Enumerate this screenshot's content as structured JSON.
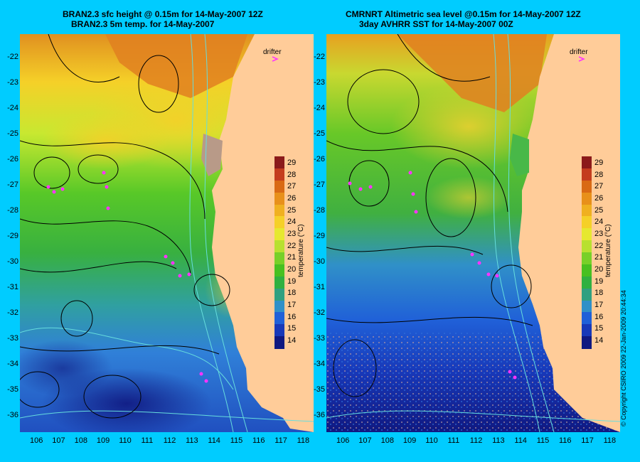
{
  "panels": [
    {
      "title_line1": "BRAN2.3 sfc height @ 0.15m for 14-May-2007 12Z",
      "title_line2": "BRAN2.3 5m temp. for 14-May-2007",
      "drifter_label": "drifter"
    },
    {
      "title_line1": "CMRNRT Altimetric sea level  @0.15m  for 14-May-2007 12Z",
      "title_line2": "3day AVHRR SST for 14-May-2007 00Z",
      "drifter_label": "drifter"
    }
  ],
  "axes": {
    "lat_ticks": [
      "-22",
      "-23",
      "-24",
      "-25",
      "-26",
      "-27",
      "-28",
      "-29",
      "-30",
      "-31",
      "-32",
      "-33",
      "-34",
      "-35",
      "-36"
    ],
    "lon_ticks": [
      "106",
      "107",
      "108",
      "109",
      "110",
      "111",
      "112",
      "113",
      "114",
      "115",
      "116",
      "117",
      "118"
    ]
  },
  "colorbar": {
    "title": "temperature (°C)",
    "labels": [
      "29",
      "28",
      "27",
      "26",
      "25",
      "24",
      "23",
      "22",
      "21",
      "20",
      "19",
      "18",
      "17",
      "16",
      "15",
      "14"
    ],
    "colors": [
      "#8b1a1a",
      "#c43c1e",
      "#d96a14",
      "#e8901a",
      "#f0b020",
      "#f5d028",
      "#e6e830",
      "#b8e030",
      "#78d028",
      "#48c020",
      "#30b040",
      "#30a080",
      "#3090c8",
      "#2060d8",
      "#1838b8",
      "#101880"
    ]
  },
  "copyright": "© Copyright CSIRO 2009    22-Jan-2009 20:44:34",
  "colors": {
    "background": "#00ccff",
    "land": "#ffcc99",
    "contour": "#000000",
    "isobath": "#66dddd",
    "drifter": "#ff33ff"
  }
}
